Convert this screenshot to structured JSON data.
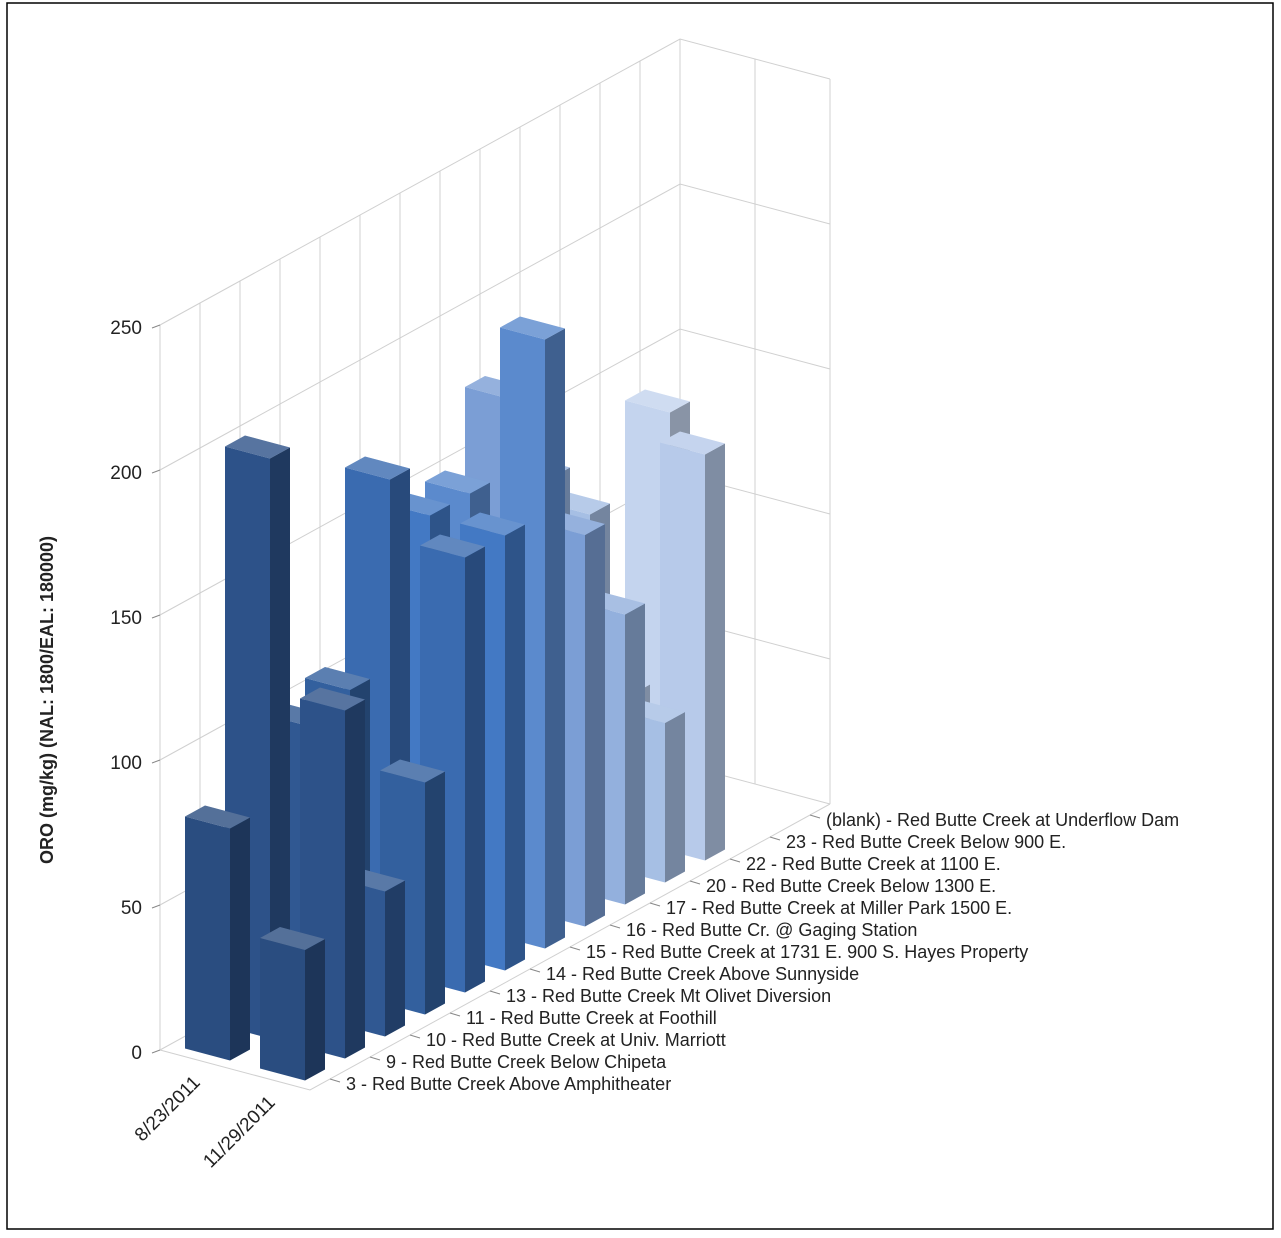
{
  "chart_data": {
    "type": "bar3d",
    "y_label": "ORO (mg/kg) (NAL: 1800/EAL: 180000)",
    "categories": [
      "8/23/2011",
      "11/29/2011"
    ],
    "ylim": [
      0,
      250
    ],
    "yticks": [
      0,
      50,
      100,
      150,
      200,
      250
    ],
    "grid": true,
    "series": [
      {
        "name": "3 - Red Butte Creek Above Amphitheater",
        "color": "#2a4d80",
        "values": [
          80,
          45
        ]
      },
      {
        "name": "9 - Red Butte Creek Below Chipeta",
        "color": "#2d5289",
        "values": [
          200,
          120
        ]
      },
      {
        "name": "10 - Red Butte Creek at Univ. Marriott",
        "color": "#305892",
        "values": [
          100,
          50
        ]
      },
      {
        "name": "11 - Red Butte Creek at Foothill",
        "color": "#33609e",
        "values": [
          105,
          80
        ]
      },
      {
        "name": "13 - Red Butte Creek Mt Olivet Diversion",
        "color": "#3a6bb0",
        "values": [
          170,
          150
        ]
      },
      {
        "name": "14 - Red Butte Creek Above Sunnyside",
        "color": "#4379c4",
        "values": [
          150,
          150
        ]
      },
      {
        "name": "15 - Red Butte Creek at 1731 E. 900 S. Hayes Property",
        "color": "#5b8acd",
        "values": [
          150,
          210
        ]
      },
      {
        "name": "16 - Red Butte Cr. @ Gaging Station",
        "color": "#7b9ed5",
        "values": [
          175,
          135
        ]
      },
      {
        "name": "17 - Red Butte Creek at Miller Park 1500 E.",
        "color": "#93b0dd",
        "values": [
          140,
          100
        ]
      },
      {
        "name": "20 - Red Butte Creek Below 1300 E.",
        "color": "#a6bfe4",
        "values": [
          120,
          55
        ]
      },
      {
        "name": "22 - Red Butte Creek at 1100 E.",
        "color": "#b7caea",
        "values": [
          50,
          140
        ]
      },
      {
        "name": "23 - Red Butte Creek Below 900 E.",
        "color": "#c4d4ee",
        "values": [
          140,
          null
        ]
      },
      {
        "name": "(blank) - Red Butte Creek at Underflow Dam",
        "color": "#d0ddf2",
        "values": [
          null,
          null
        ]
      }
    ]
  }
}
